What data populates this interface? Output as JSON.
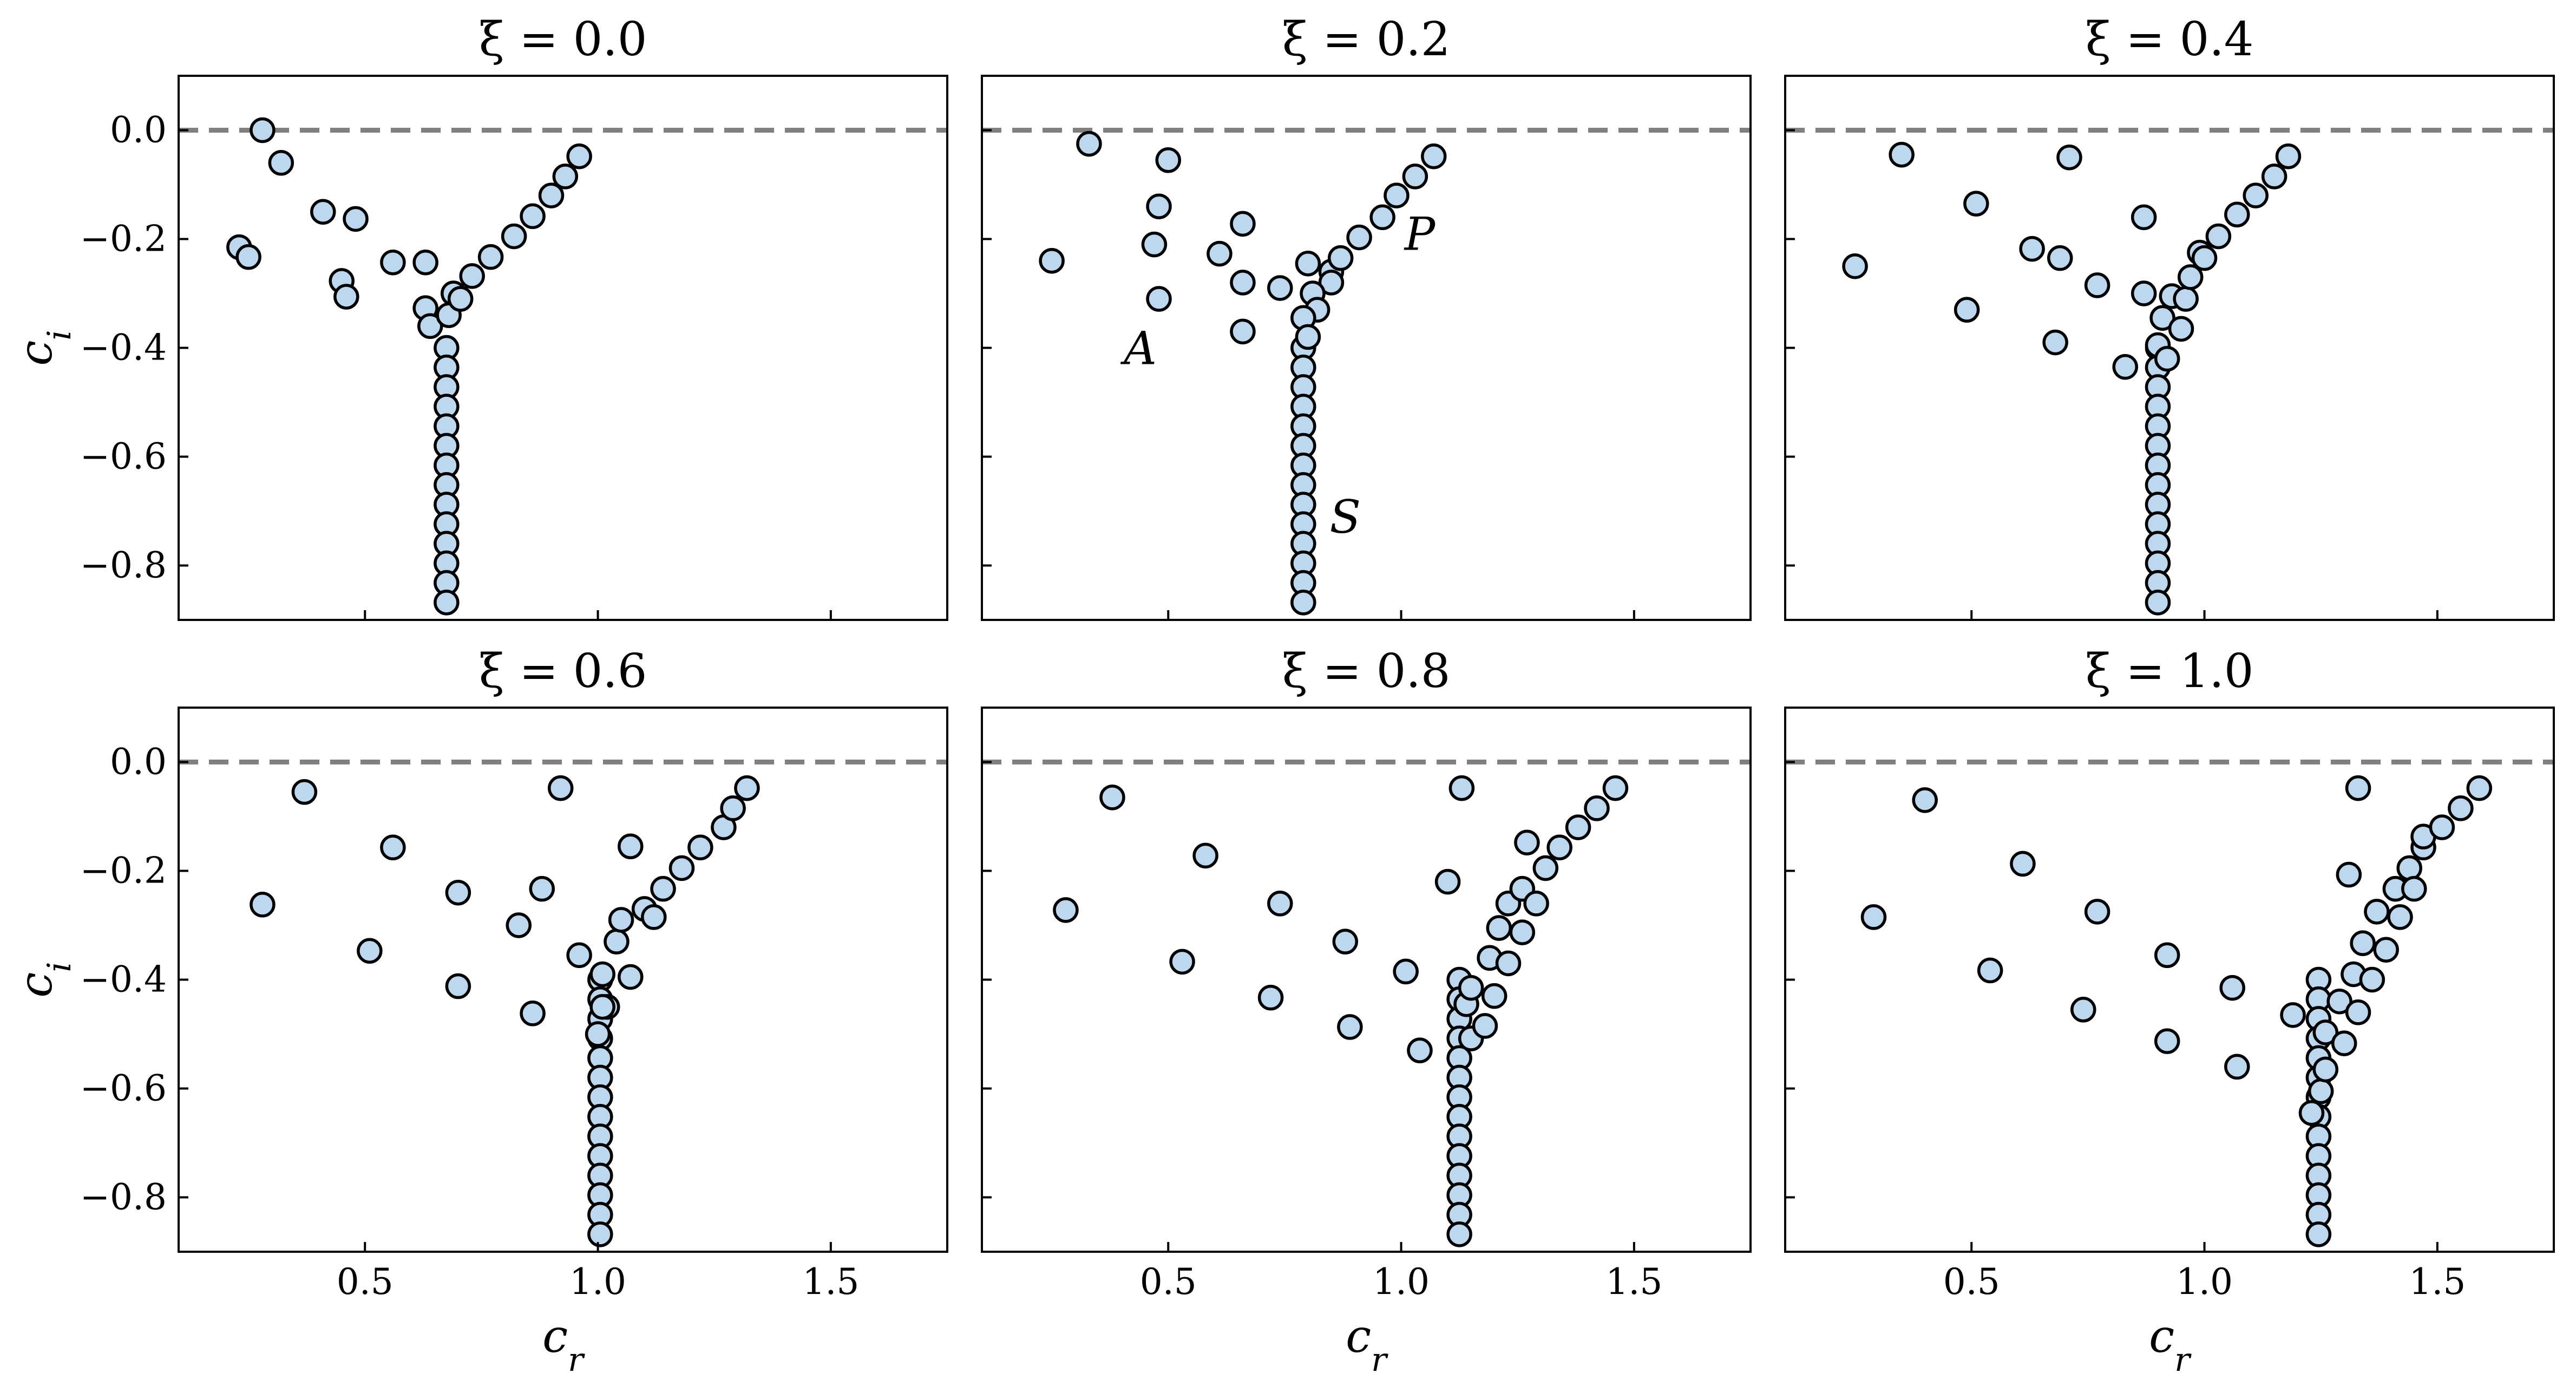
{
  "chart_data": {
    "type": "scatter",
    "xlabel": "c_r",
    "ylabel": "c_i",
    "xlim": [
      0.1,
      1.75
    ],
    "ylim": [
      -0.9,
      0.1
    ],
    "xticks": [
      0.5,
      1.0,
      1.5
    ],
    "xtick_labels": [
      "0.5",
      "1.0",
      "1.5"
    ],
    "yticks": [
      0.0,
      -0.2,
      -0.4,
      -0.6,
      -0.8
    ],
    "ytick_labels": [
      "0.0",
      "−0.2",
      "−0.4",
      "−0.6",
      "−0.8"
    ],
    "reference_line": {
      "y": 0.0,
      "style": "dashed",
      "color": "#808080"
    },
    "marker": {
      "fill": "#bcd7ee",
      "edge": "#000000"
    },
    "grid": false,
    "panels": [
      {
        "title": "ξ = 0.0",
        "branch_x": 0.675,
        "points": [
          [
            0.28,
            0.0
          ],
          [
            0.32,
            -0.06
          ],
          [
            0.23,
            -0.215
          ],
          [
            0.25,
            -0.233
          ],
          [
            0.41,
            -0.15
          ],
          [
            0.48,
            -0.163
          ],
          [
            0.45,
            -0.277
          ],
          [
            0.46,
            -0.306
          ],
          [
            0.56,
            -0.243
          ],
          [
            0.63,
            -0.243
          ],
          [
            0.63,
            -0.327
          ],
          [
            0.64,
            -0.36
          ],
          [
            0.69,
            -0.3
          ],
          [
            0.68,
            -0.34
          ],
          [
            0.705,
            -0.31
          ],
          [
            0.73,
            -0.268
          ],
          [
            0.77,
            -0.233
          ],
          [
            0.82,
            -0.195
          ],
          [
            0.86,
            -0.158
          ],
          [
            0.9,
            -0.12
          ],
          [
            0.93,
            -0.085
          ],
          [
            0.96,
            -0.048
          ]
        ],
        "annotations": []
      },
      {
        "title": "ξ = 0.2",
        "branch_x": 0.79,
        "points": [
          [
            0.33,
            -0.025
          ],
          [
            0.25,
            -0.24
          ],
          [
            0.5,
            -0.055
          ],
          [
            0.48,
            -0.14
          ],
          [
            0.47,
            -0.21
          ],
          [
            0.48,
            -0.31
          ],
          [
            0.61,
            -0.227
          ],
          [
            0.66,
            -0.172
          ],
          [
            0.66,
            -0.28
          ],
          [
            0.66,
            -0.37
          ],
          [
            0.74,
            -0.29
          ],
          [
            0.8,
            -0.245
          ],
          [
            0.85,
            -0.26
          ],
          [
            0.85,
            -0.28
          ],
          [
            0.81,
            -0.3
          ],
          [
            0.82,
            -0.33
          ],
          [
            0.79,
            -0.345
          ],
          [
            0.8,
            -0.38
          ],
          [
            0.87,
            -0.235
          ],
          [
            0.91,
            -0.197
          ],
          [
            0.96,
            -0.16
          ],
          [
            0.99,
            -0.12
          ],
          [
            1.03,
            -0.085
          ],
          [
            1.07,
            -0.048
          ]
        ],
        "annotations": [
          {
            "text": "P",
            "x": 1.04,
            "y": -0.22
          },
          {
            "text": "A",
            "x": 0.44,
            "y": -0.43
          },
          {
            "text": "S",
            "x": 0.88,
            "y": -0.74
          }
        ]
      },
      {
        "title": "ξ = 0.4",
        "branch_x": 0.9,
        "points": [
          [
            0.35,
            -0.045
          ],
          [
            0.25,
            -0.25
          ],
          [
            0.51,
            -0.135
          ],
          [
            0.49,
            -0.33
          ],
          [
            0.63,
            -0.218
          ],
          [
            0.69,
            -0.235
          ],
          [
            0.68,
            -0.39
          ],
          [
            0.71,
            -0.05
          ],
          [
            0.77,
            -0.285
          ],
          [
            0.83,
            -0.435
          ],
          [
            0.87,
            -0.16
          ],
          [
            0.87,
            -0.3
          ],
          [
            0.91,
            -0.345
          ],
          [
            0.9,
            -0.395
          ],
          [
            0.92,
            -0.42
          ],
          [
            0.93,
            -0.305
          ],
          [
            0.96,
            -0.31
          ],
          [
            0.95,
            -0.365
          ],
          [
            0.97,
            -0.27
          ],
          [
            0.99,
            -0.225
          ],
          [
            1.0,
            -0.235
          ],
          [
            1.03,
            -0.195
          ],
          [
            1.07,
            -0.155
          ],
          [
            1.11,
            -0.12
          ],
          [
            1.15,
            -0.085
          ],
          [
            1.18,
            -0.048
          ]
        ],
        "annotations": []
      },
      {
        "title": "ξ = 0.6",
        "branch_x": 1.005,
        "points": [
          [
            0.37,
            -0.055
          ],
          [
            0.28,
            -0.262
          ],
          [
            0.56,
            -0.157
          ],
          [
            0.51,
            -0.347
          ],
          [
            0.7,
            -0.24
          ],
          [
            0.7,
            -0.412
          ],
          [
            0.83,
            -0.3
          ],
          [
            0.86,
            -0.462
          ],
          [
            0.88,
            -0.233
          ],
          [
            0.92,
            -0.048
          ],
          [
            0.96,
            -0.355
          ],
          [
            1.01,
            -0.39
          ],
          [
            1.02,
            -0.45
          ],
          [
            1.04,
            -0.33
          ],
          [
            1.05,
            -0.29
          ],
          [
            1.07,
            -0.155
          ],
          [
            1.07,
            -0.395
          ],
          [
            1.1,
            -0.27
          ],
          [
            1.12,
            -0.285
          ],
          [
            1.14,
            -0.233
          ],
          [
            1.18,
            -0.195
          ],
          [
            1.22,
            -0.157
          ],
          [
            1.27,
            -0.12
          ],
          [
            1.29,
            -0.085
          ],
          [
            1.32,
            -0.048
          ],
          [
            1.0,
            -0.5
          ],
          [
            1.01,
            -0.45
          ]
        ],
        "annotations": []
      },
      {
        "title": "ξ = 0.8",
        "branch_x": 1.125,
        "points": [
          [
            0.38,
            -0.065
          ],
          [
            0.28,
            -0.272
          ],
          [
            0.58,
            -0.172
          ],
          [
            0.53,
            -0.367
          ],
          [
            0.74,
            -0.26
          ],
          [
            0.72,
            -0.433
          ],
          [
            0.88,
            -0.33
          ],
          [
            0.89,
            -0.487
          ],
          [
            1.01,
            -0.385
          ],
          [
            1.04,
            -0.53
          ],
          [
            1.1,
            -0.22
          ],
          [
            1.13,
            -0.048
          ],
          [
            1.14,
            -0.445
          ],
          [
            1.15,
            -0.415
          ],
          [
            1.15,
            -0.508
          ],
          [
            1.18,
            -0.485
          ],
          [
            1.19,
            -0.36
          ],
          [
            1.2,
            -0.43
          ],
          [
            1.21,
            -0.305
          ],
          [
            1.23,
            -0.37
          ],
          [
            1.23,
            -0.26
          ],
          [
            1.26,
            -0.233
          ],
          [
            1.26,
            -0.313
          ],
          [
            1.27,
            -0.148
          ],
          [
            1.29,
            -0.26
          ],
          [
            1.31,
            -0.195
          ],
          [
            1.34,
            -0.157
          ],
          [
            1.38,
            -0.12
          ],
          [
            1.42,
            -0.085
          ],
          [
            1.46,
            -0.048
          ]
        ],
        "annotations": []
      },
      {
        "title": "ξ = 1.0",
        "branch_x": 1.245,
        "points": [
          [
            0.4,
            -0.07
          ],
          [
            0.29,
            -0.285
          ],
          [
            0.61,
            -0.187
          ],
          [
            0.54,
            -0.383
          ],
          [
            0.77,
            -0.275
          ],
          [
            0.74,
            -0.455
          ],
          [
            0.92,
            -0.355
          ],
          [
            0.92,
            -0.513
          ],
          [
            1.06,
            -0.415
          ],
          [
            1.07,
            -0.56
          ],
          [
            1.19,
            -0.465
          ],
          [
            1.23,
            -0.645
          ],
          [
            1.25,
            -0.605
          ],
          [
            1.26,
            -0.565
          ],
          [
            1.26,
            -0.497
          ],
          [
            1.29,
            -0.44
          ],
          [
            1.3,
            -0.517
          ],
          [
            1.31,
            -0.207
          ],
          [
            1.32,
            -0.39
          ],
          [
            1.33,
            -0.46
          ],
          [
            1.33,
            -0.048
          ],
          [
            1.34,
            -0.333
          ],
          [
            1.36,
            -0.4
          ],
          [
            1.37,
            -0.275
          ],
          [
            1.39,
            -0.345
          ],
          [
            1.41,
            -0.233
          ],
          [
            1.42,
            -0.285
          ],
          [
            1.44,
            -0.195
          ],
          [
            1.45,
            -0.233
          ],
          [
            1.47,
            -0.157
          ],
          [
            1.47,
            -0.137
          ],
          [
            1.51,
            -0.12
          ],
          [
            1.55,
            -0.085
          ],
          [
            1.59,
            -0.048
          ]
        ],
        "annotations": []
      }
    ]
  }
}
